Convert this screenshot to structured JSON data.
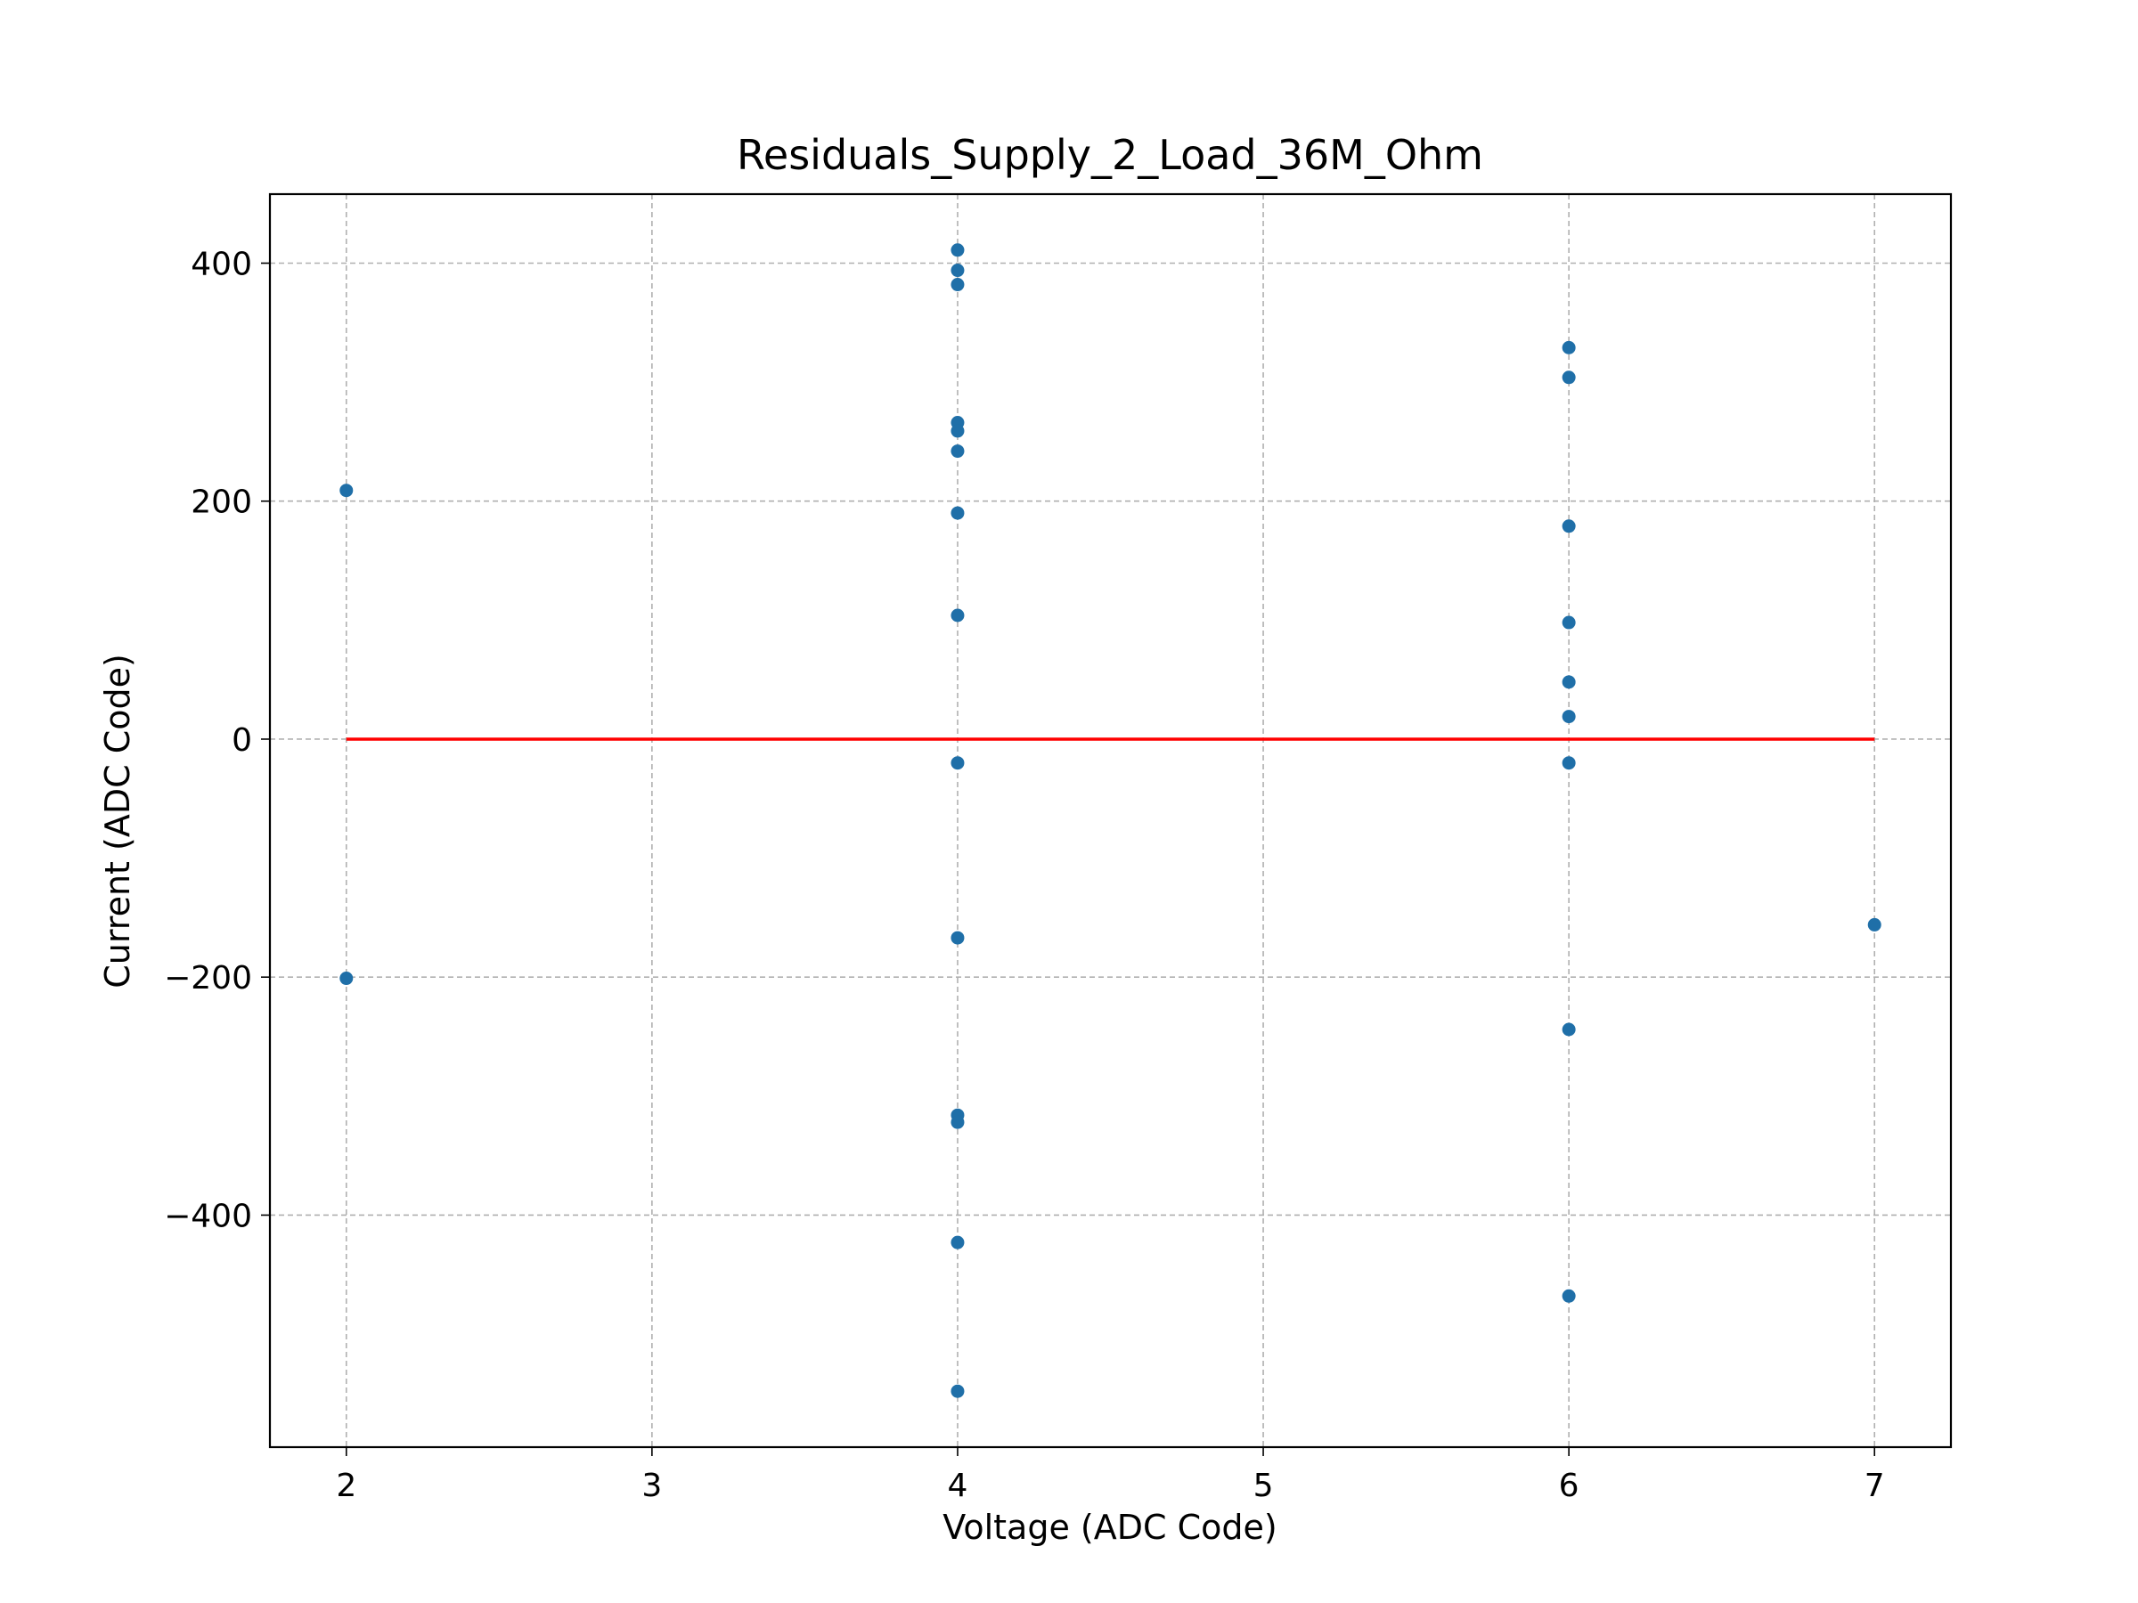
{
  "chart_data": {
    "type": "scatter",
    "title": "Residuals_Supply_2_Load_36M_Ohm",
    "xlabel": "Voltage (ADC Code)",
    "ylabel": "Current (ADC Code)",
    "xlim": [
      1.75,
      7.25
    ],
    "ylim": [
      -595,
      458
    ],
    "xticks": [
      2,
      3,
      4,
      5,
      6,
      7
    ],
    "xtick_labels": [
      "2",
      "3",
      "4",
      "5",
      "6",
      "7"
    ],
    "yticks": [
      -400,
      -200,
      0,
      200,
      400
    ],
    "ytick_labels": [
      "−400",
      "−200",
      "0",
      "200",
      "400"
    ],
    "grid": true,
    "point_color": "#1f6fa8",
    "reference_line": {
      "x": [
        2,
        7
      ],
      "y": [
        0,
        0
      ],
      "color": "#ff0000"
    },
    "points": [
      {
        "x": 2,
        "y": 209
      },
      {
        "x": 2,
        "y": -201
      },
      {
        "x": 4,
        "y": 411
      },
      {
        "x": 4,
        "y": 394
      },
      {
        "x": 4,
        "y": 382
      },
      {
        "x": 4,
        "y": 266
      },
      {
        "x": 4,
        "y": 259
      },
      {
        "x": 4,
        "y": 242
      },
      {
        "x": 4,
        "y": 190
      },
      {
        "x": 4,
        "y": 104
      },
      {
        "x": 4,
        "y": -20
      },
      {
        "x": 4,
        "y": -167
      },
      {
        "x": 4,
        "y": -316
      },
      {
        "x": 4,
        "y": -322
      },
      {
        "x": 4,
        "y": -423
      },
      {
        "x": 4,
        "y": -548
      },
      {
        "x": 6,
        "y": 329
      },
      {
        "x": 6,
        "y": 304
      },
      {
        "x": 6,
        "y": 179
      },
      {
        "x": 6,
        "y": 98
      },
      {
        "x": 6,
        "y": 48
      },
      {
        "x": 6,
        "y": 19
      },
      {
        "x": 6,
        "y": -20
      },
      {
        "x": 6,
        "y": -244
      },
      {
        "x": 6,
        "y": -468
      },
      {
        "x": 7,
        "y": -156
      }
    ]
  }
}
